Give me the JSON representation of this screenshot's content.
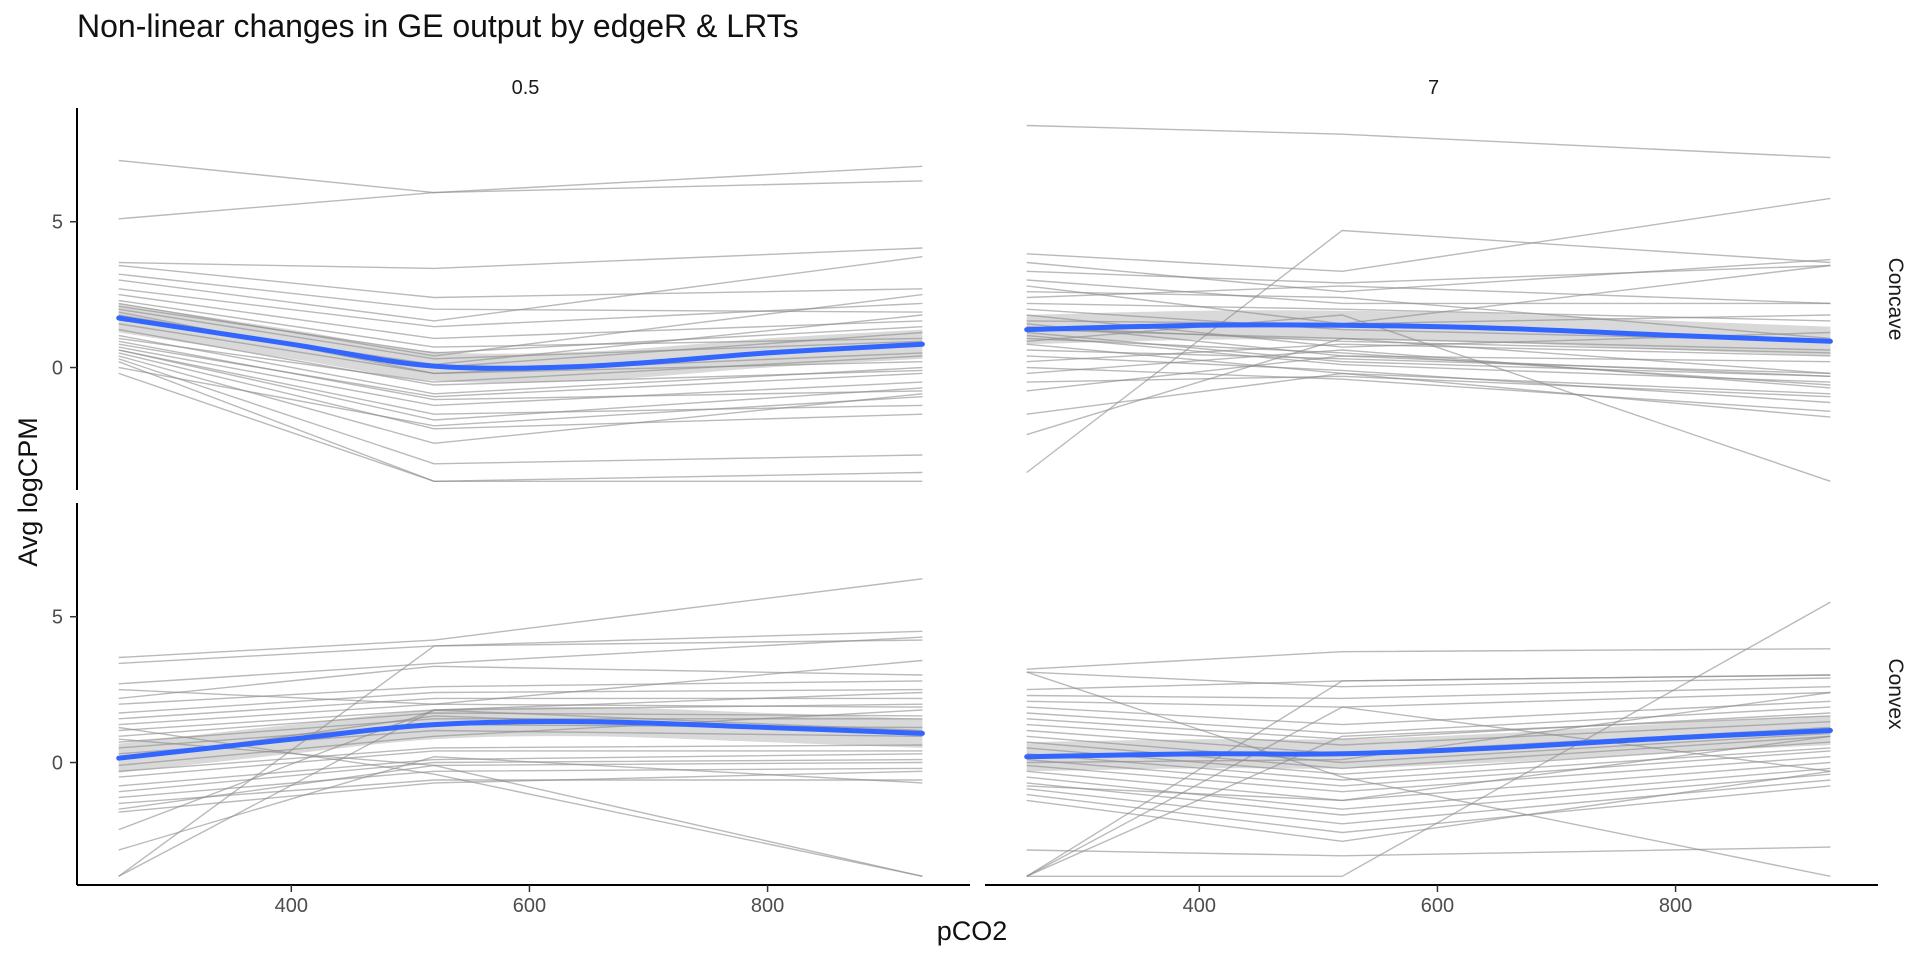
{
  "chart_data": {
    "type": "line",
    "title": "Non-linear changes in GE output by edgeR & LRTs",
    "xlabel": "pCO2",
    "ylabel": "Avg logCPM",
    "column_facets": [
      "0.5",
      "7"
    ],
    "row_facets": [
      "Concave",
      "Convex"
    ],
    "x": [
      255,
      520,
      930
    ],
    "xlim": [
      220,
      970
    ],
    "ylim": [
      -4.2,
      8.9
    ],
    "x_ticks": [
      400,
      600,
      800
    ],
    "y_ticks": [
      0,
      5
    ],
    "grid": false,
    "colors": {
      "gene_line": "#8c8c8c",
      "smooth": "#3366ff",
      "ribbon": "#cccccc",
      "axis": "#000000"
    },
    "panels": [
      {
        "col": "0.5",
        "row": "Concave",
        "smooth": {
          "x": [
            255,
            400,
            520,
            650,
            800,
            930
          ],
          "y": [
            1.7,
            0.8,
            0.05,
            0.05,
            0.5,
            0.8
          ]
        },
        "series": [
          [
            7.1,
            6.0,
            6.9
          ],
          [
            5.1,
            6.0,
            6.4
          ],
          [
            3.6,
            3.4,
            4.1
          ],
          [
            3.5,
            2.4,
            2.7
          ],
          [
            3.2,
            2.0,
            1.9
          ],
          [
            3.0,
            1.6,
            3.8
          ],
          [
            2.7,
            1.4,
            2.2
          ],
          [
            2.5,
            1.0,
            1.6
          ],
          [
            2.3,
            0.7,
            1.0
          ],
          [
            2.2,
            0.4,
            2.5
          ],
          [
            2.1,
            0.5,
            1.4
          ],
          [
            2.0,
            0.3,
            0.9
          ],
          [
            1.9,
            -0.2,
            0.2
          ],
          [
            1.8,
            0.0,
            1.2
          ],
          [
            1.7,
            0.1,
            1.8
          ],
          [
            1.5,
            -0.2,
            0.5
          ],
          [
            1.3,
            -0.6,
            -0.1
          ],
          [
            1.1,
            -0.9,
            0.0
          ],
          [
            0.9,
            -1.1,
            -0.8
          ],
          [
            0.7,
            -1.3,
            -0.5
          ],
          [
            0.6,
            -1.6,
            -1.3
          ],
          [
            0.5,
            -2.1,
            -1.6
          ],
          [
            0.4,
            -2.6,
            -0.9
          ],
          [
            0.3,
            -3.3,
            -3.0
          ],
          [
            0.2,
            -3.9,
            -3.6
          ],
          [
            0.0,
            -2.0,
            -1.0
          ],
          [
            -0.2,
            -3.9,
            -3.9
          ],
          [
            0.8,
            -1.0,
            -0.2
          ],
          [
            1.0,
            -0.5,
            0.4
          ],
          [
            0.6,
            -1.8,
            -0.7
          ]
        ]
      },
      {
        "col": "7",
        "row": "Concave",
        "smooth": {
          "x": [
            255,
            400,
            520,
            650,
            800,
            930
          ],
          "y": [
            1.3,
            1.45,
            1.45,
            1.35,
            1.1,
            0.9
          ]
        },
        "series": [
          [
            8.3,
            8.0,
            7.2
          ],
          [
            3.9,
            3.3,
            5.8
          ],
          [
            3.6,
            2.6,
            3.7
          ],
          [
            3.3,
            2.9,
            3.5
          ],
          [
            3.0,
            2.2,
            2.2
          ],
          [
            2.8,
            1.5,
            3.5
          ],
          [
            2.4,
            2.8,
            2.2
          ],
          [
            2.2,
            2.0,
            1.6
          ],
          [
            2.0,
            1.3,
            0.9
          ],
          [
            1.8,
            0.7,
            1.2
          ],
          [
            1.6,
            1.5,
            1.8
          ],
          [
            1.5,
            0.4,
            0.2
          ],
          [
            1.3,
            1.0,
            0.6
          ],
          [
            1.2,
            0.2,
            -0.3
          ],
          [
            1.0,
            0.5,
            -0.6
          ],
          [
            0.8,
            -0.2,
            -0.9
          ],
          [
            0.6,
            0.3,
            -0.2
          ],
          [
            0.4,
            -0.1,
            -1.2
          ],
          [
            0.2,
            0.8,
            0.4
          ],
          [
            0.0,
            -0.4,
            -1.5
          ],
          [
            -0.2,
            0.6,
            -0.7
          ],
          [
            -0.5,
            -0.3,
            -1.0
          ],
          [
            -0.8,
            0.4,
            -0.3
          ],
          [
            -1.6,
            -0.2,
            -1.7
          ],
          [
            -2.3,
            1.0,
            -0.2
          ],
          [
            -3.6,
            4.7,
            3.6
          ],
          [
            0.9,
            1.8,
            -3.9
          ],
          [
            1.4,
            0.9,
            0.5
          ],
          [
            2.6,
            2.4,
            1.0
          ],
          [
            1.1,
            0.1,
            -0.5
          ]
        ]
      },
      {
        "col": "0.5",
        "row": "Convex",
        "smooth": {
          "x": [
            255,
            400,
            520,
            650,
            800,
            930
          ],
          "y": [
            0.15,
            0.8,
            1.3,
            1.4,
            1.2,
            1.0
          ]
        },
        "series": [
          [
            3.6,
            4.2,
            6.3
          ],
          [
            3.4,
            4.0,
            4.5
          ],
          [
            2.7,
            3.4,
            4.3
          ],
          [
            2.5,
            2.0,
            3.5
          ],
          [
            2.2,
            3.3,
            3.0
          ],
          [
            2.0,
            2.6,
            2.8
          ],
          [
            1.7,
            2.4,
            2.5
          ],
          [
            1.5,
            2.2,
            2.2
          ],
          [
            1.3,
            2.0,
            1.9
          ],
          [
            1.1,
            1.8,
            2.4
          ],
          [
            0.9,
            1.7,
            1.6
          ],
          [
            0.7,
            1.5,
            1.5
          ],
          [
            0.5,
            1.3,
            1.2
          ],
          [
            0.3,
            1.1,
            0.9
          ],
          [
            0.1,
            1.6,
            1.0
          ],
          [
            -0.1,
            0.9,
            1.8
          ],
          [
            -0.3,
            0.5,
            0.6
          ],
          [
            -0.5,
            0.4,
            0.4
          ],
          [
            -0.8,
            0.1,
            0.3
          ],
          [
            -1.0,
            0.0,
            0.1
          ],
          [
            -1.2,
            -0.3,
            -0.2
          ],
          [
            -1.4,
            -0.6,
            -0.6
          ],
          [
            -1.7,
            -0.7,
            -0.3
          ],
          [
            -2.3,
            1.8,
            2.0
          ],
          [
            -3.0,
            0.2,
            -0.7
          ],
          [
            -3.9,
            1.8,
            1.1
          ],
          [
            -3.9,
            4.0,
            4.2
          ],
          [
            0.8,
            -0.1,
            -3.9
          ],
          [
            1.2,
            -0.4,
            -3.9
          ],
          [
            -1.6,
            -0.1,
            0.0
          ]
        ]
      },
      {
        "col": "7",
        "row": "Convex",
        "smooth": {
          "x": [
            255,
            400,
            520,
            650,
            800,
            930
          ],
          "y": [
            0.2,
            0.3,
            0.3,
            0.5,
            0.85,
            1.1
          ]
        },
        "series": [
          [
            3.2,
            3.8,
            3.9
          ],
          [
            3.1,
            2.6,
            2.9
          ],
          [
            2.5,
            2.8,
            3.0
          ],
          [
            2.3,
            2.2,
            2.6
          ],
          [
            2.1,
            1.9,
            2.4
          ],
          [
            1.9,
            1.3,
            2.1
          ],
          [
            1.7,
            1.0,
            1.9
          ],
          [
            1.5,
            0.8,
            1.7
          ],
          [
            1.3,
            0.6,
            1.4
          ],
          [
            1.1,
            0.3,
            1.2
          ],
          [
            0.9,
            0.0,
            1.0
          ],
          [
            0.7,
            -0.2,
            0.9
          ],
          [
            0.5,
            -0.4,
            0.7
          ],
          [
            0.3,
            -0.6,
            0.5
          ],
          [
            0.1,
            -0.8,
            0.4
          ],
          [
            -0.1,
            -1.0,
            0.2
          ],
          [
            -0.3,
            -1.3,
            0.0
          ],
          [
            -0.5,
            -1.6,
            -0.2
          ],
          [
            -0.7,
            -1.8,
            -0.4
          ],
          [
            -0.9,
            -2.1,
            -0.6
          ],
          [
            -1.1,
            -2.4,
            -0.8
          ],
          [
            -1.3,
            -2.7,
            -0.3
          ],
          [
            -3.0,
            -3.2,
            -2.9
          ],
          [
            -3.9,
            2.8,
            3.0
          ],
          [
            -3.9,
            1.9,
            -0.3
          ],
          [
            -3.9,
            0.9,
            1.6
          ],
          [
            -3.9,
            -3.9,
            5.5
          ],
          [
            3.1,
            -0.5,
            -3.9
          ],
          [
            0.0,
            0.1,
            2.4
          ],
          [
            -0.8,
            -1.3,
            0.9
          ]
        ]
      }
    ]
  }
}
